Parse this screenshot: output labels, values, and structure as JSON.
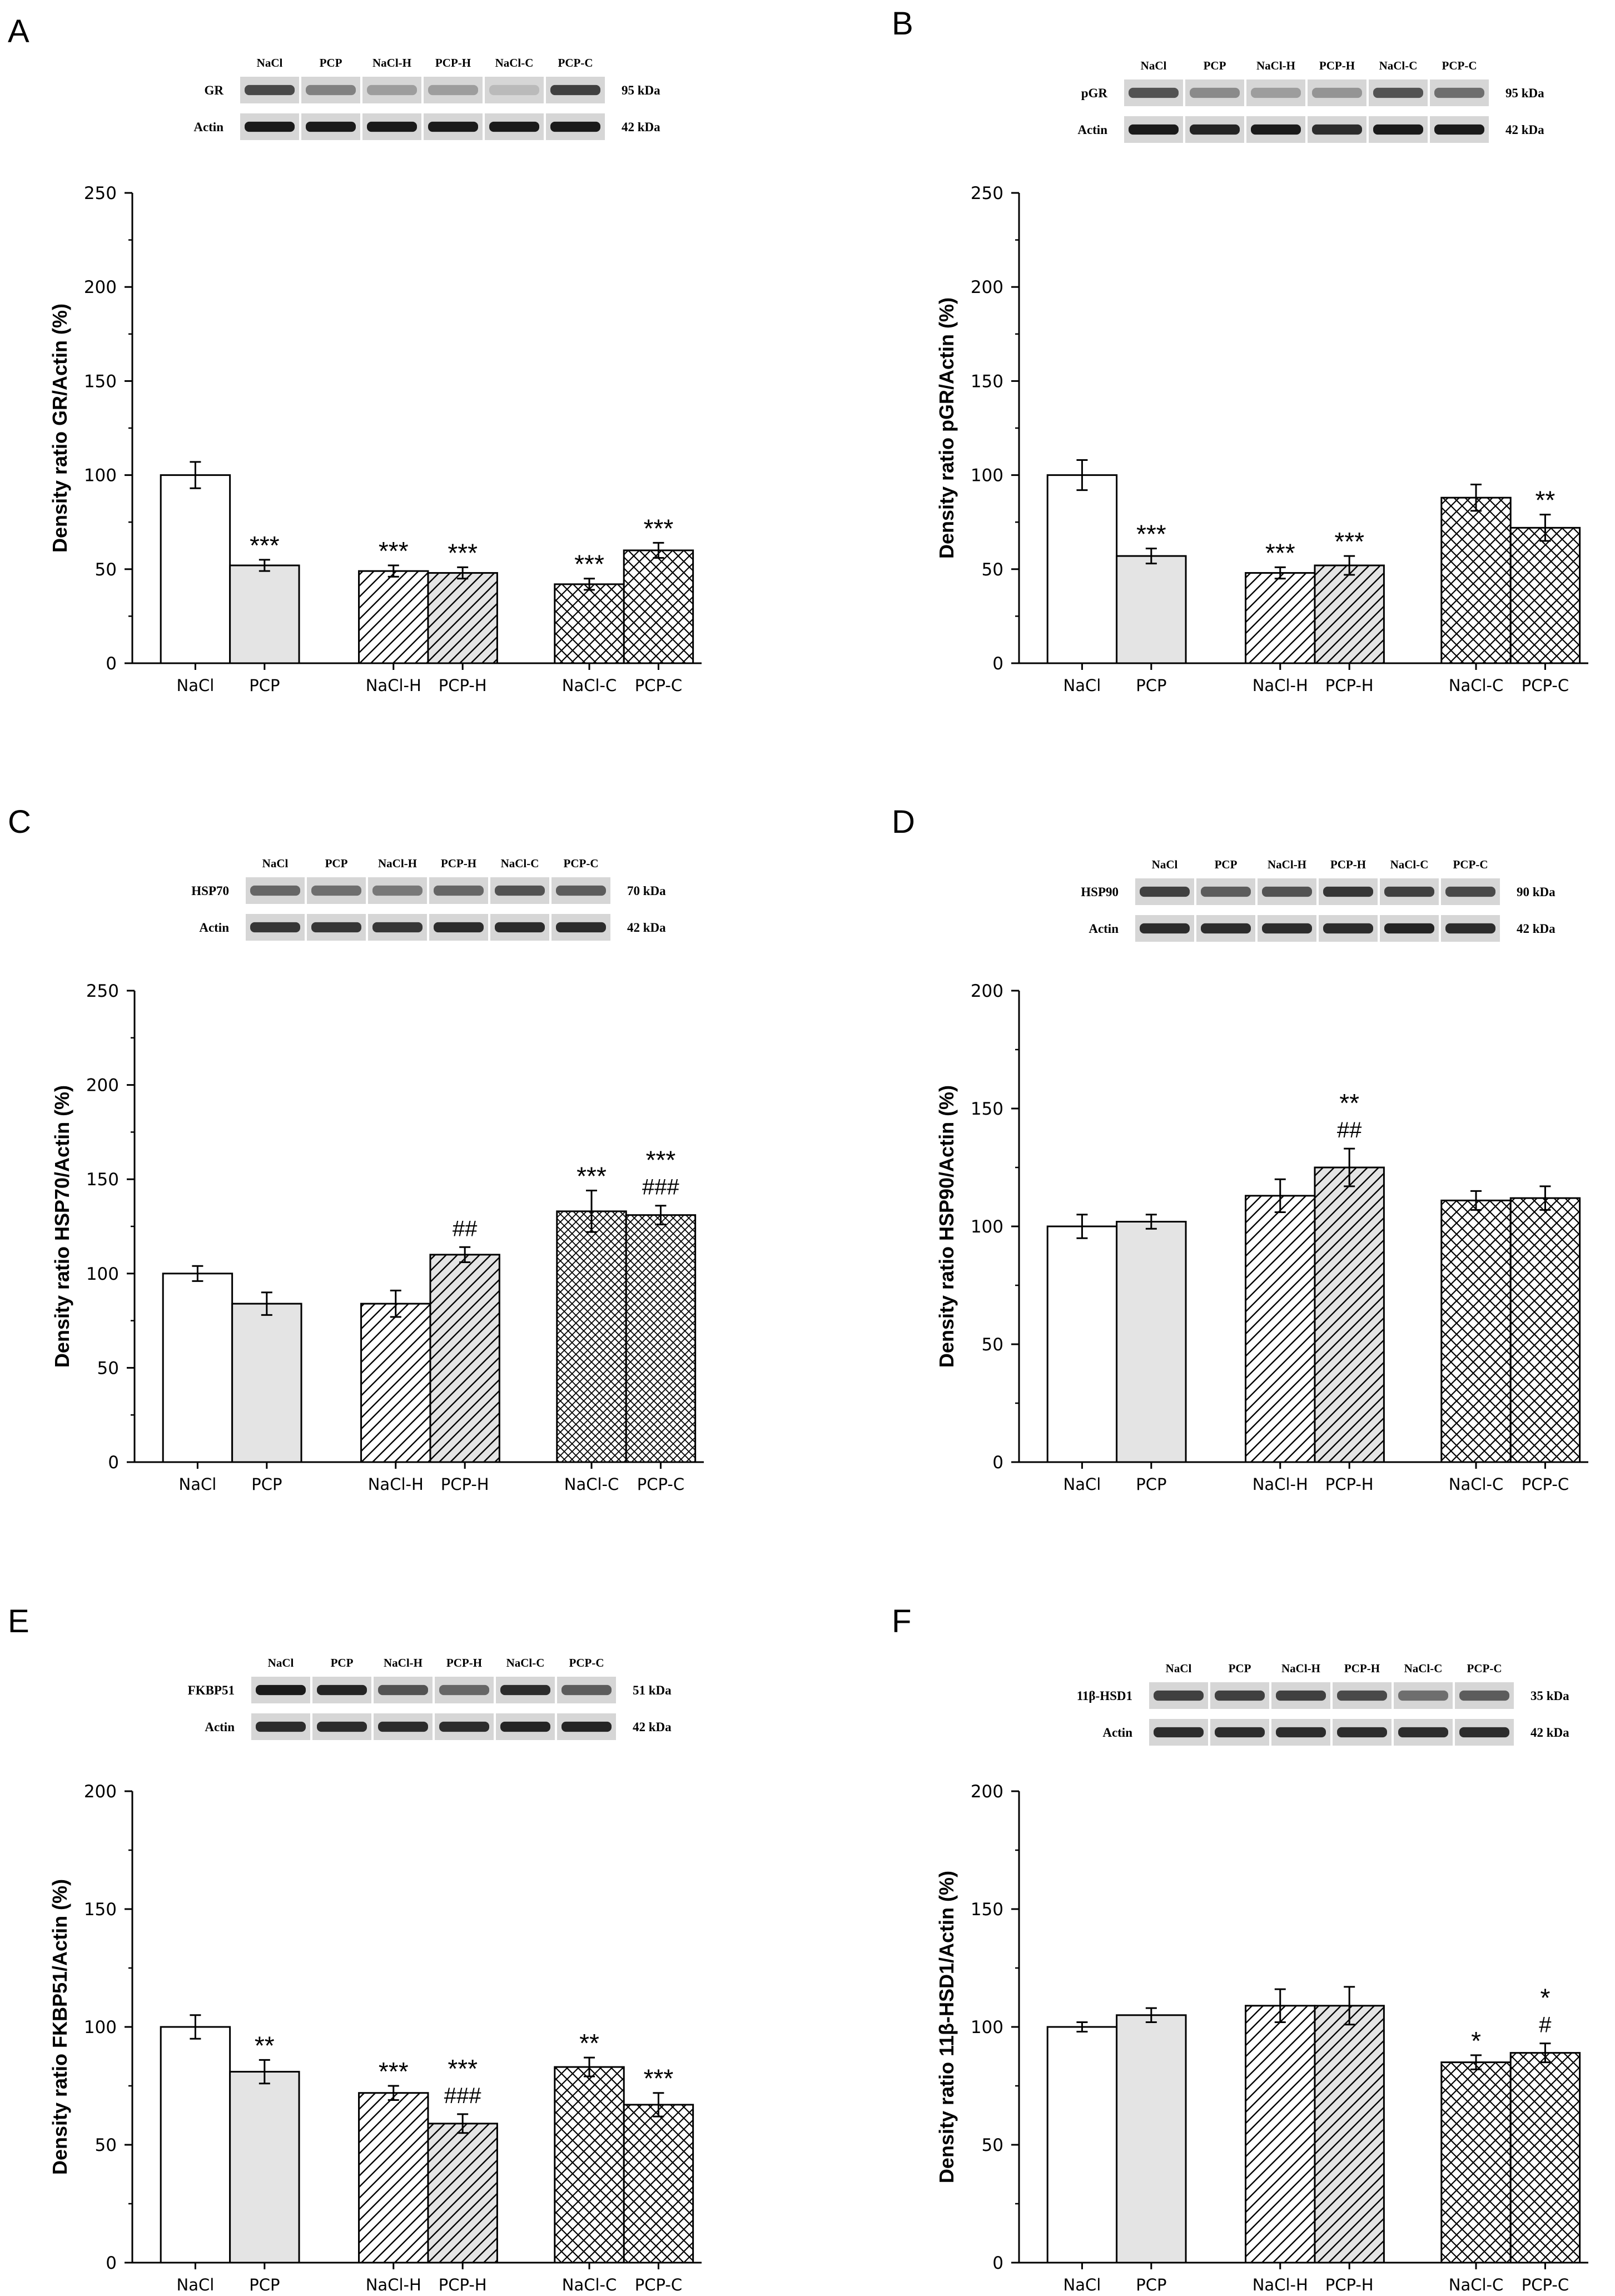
{
  "figure": {
    "colors": {
      "ink": "#000000",
      "pcp_fill": "#e4e4e4",
      "white": "#ffffff",
      "band": "#1a1a1a"
    }
  },
  "chart_data": [
    {
      "label": "A",
      "type": "bar",
      "categories": [
        "NaCl",
        "PCP",
        "NaCl-H",
        "PCP-H",
        "NaCl-C",
        "PCP-C"
      ],
      "values": [
        100,
        52,
        49,
        48,
        42,
        60
      ],
      "errors": [
        7,
        3,
        3,
        3,
        3,
        4
      ],
      "annotations": [
        "",
        "***",
        "***",
        "***",
        "***",
        "***"
      ],
      "annotations2": [
        "",
        "",
        "",
        "",
        "",
        ""
      ],
      "patterns": [
        "white",
        "gray",
        "hatch",
        "hatch-gray",
        "cross",
        "cross"
      ],
      "ylabel": "Density ratio GR/Actin (%)",
      "ylim": [
        0,
        250
      ],
      "yticks": [
        0,
        50,
        100,
        150,
        200,
        250
      ],
      "blot": {
        "lanes": [
          "NaCl",
          "PCP",
          "NaCl-H",
          "PCP-H",
          "NaCl-C",
          "PCP-C"
        ],
        "rows": [
          {
            "name": "GR",
            "kda": "95 kDa",
            "intensity": [
              0.75,
              0.45,
              0.3,
              0.3,
              0.15,
              0.8
            ]
          },
          {
            "name": "Actin",
            "kda": "42 kDa",
            "intensity": [
              1,
              1,
              1,
              1,
              1,
              1
            ]
          }
        ]
      }
    },
    {
      "label": "B",
      "type": "bar",
      "categories": [
        "NaCl",
        "PCP",
        "NaCl-H",
        "PCP-H",
        "NaCl-C",
        "PCP-C"
      ],
      "values": [
        100,
        57,
        48,
        52,
        88,
        72
      ],
      "errors": [
        8,
        4,
        3,
        5,
        7,
        7
      ],
      "annotations": [
        "",
        "***",
        "***",
        "***",
        "",
        "**"
      ],
      "annotations2": [
        "",
        "",
        "",
        "",
        "",
        ""
      ],
      "patterns": [
        "white",
        "gray",
        "hatch",
        "hatch-gray",
        "cross",
        "cross"
      ],
      "ylabel": "Density ratio pGR/Actin (%)",
      "ylim": [
        0,
        250
      ],
      "yticks": [
        0,
        50,
        100,
        150,
        200,
        250
      ],
      "blot": {
        "lanes": [
          "NaCl",
          "PCP",
          "NaCl-H",
          "PCP-H",
          "NaCl-C",
          "PCP-C"
        ],
        "rows": [
          {
            "name": "pGR",
            "kda": "95 kDa",
            "intensity": [
              0.7,
              0.4,
              0.3,
              0.35,
              0.7,
              0.55
            ]
          },
          {
            "name": "Actin",
            "kda": "42 kDa",
            "intensity": [
              1,
              0.95,
              1,
              0.9,
              1,
              1
            ]
          }
        ]
      }
    },
    {
      "label": "C",
      "type": "bar",
      "categories": [
        "NaCl",
        "PCP",
        "NaCl-H",
        "PCP-H",
        "NaCl-C",
        "PCP-C"
      ],
      "values": [
        100,
        84,
        84,
        110,
        133,
        131
      ],
      "errors": [
        4,
        6,
        7,
        4,
        11,
        5
      ],
      "annotations": [
        "",
        "",
        "",
        "",
        "***",
        "***"
      ],
      "annotations2": [
        "",
        "",
        "",
        "##",
        "",
        "###"
      ],
      "patterns": [
        "white",
        "gray",
        "hatch",
        "hatch-gray",
        "cross-dense",
        "cross-dense"
      ],
      "ylabel": "Density ratio HSP70/Actin (%)",
      "ylim": [
        0,
        250
      ],
      "yticks": [
        0,
        50,
        100,
        150,
        200,
        250
      ],
      "blot": {
        "lanes": [
          "NaCl",
          "PCP",
          "NaCl-H",
          "PCP-H",
          "NaCl-C",
          "PCP-C"
        ],
        "rows": [
          {
            "name": "HSP70",
            "kda": "70 kDa",
            "intensity": [
              0.6,
              0.55,
              0.5,
              0.6,
              0.7,
              0.65
            ]
          },
          {
            "name": "Actin",
            "kda": "42 kDa",
            "intensity": [
              0.85,
              0.85,
              0.85,
              0.9,
              0.9,
              0.9
            ]
          }
        ]
      }
    },
    {
      "label": "D",
      "type": "bar",
      "categories": [
        "NaCl",
        "PCP",
        "NaCl-H",
        "PCP-H",
        "NaCl-C",
        "PCP-C"
      ],
      "values": [
        100,
        102,
        113,
        125,
        111,
        112
      ],
      "errors": [
        5,
        3,
        7,
        8,
        4,
        5
      ],
      "annotations": [
        "",
        "",
        "",
        "**",
        "",
        ""
      ],
      "annotations2": [
        "",
        "",
        "",
        "##",
        "",
        ""
      ],
      "patterns": [
        "white",
        "gray",
        "hatch",
        "hatch-gray",
        "cross",
        "cross"
      ],
      "ylabel": "Density ratio HSP90/Actin (%)",
      "ylim": [
        0,
        200
      ],
      "yticks": [
        0,
        50,
        100,
        150,
        200
      ],
      "blot": {
        "lanes": [
          "NaCl",
          "PCP",
          "NaCl-H",
          "PCP-H",
          "NaCl-C",
          "PCP-C"
        ],
        "rows": [
          {
            "name": "HSP90",
            "kda": "90 kDa",
            "intensity": [
              0.8,
              0.65,
              0.7,
              0.85,
              0.8,
              0.75
            ]
          },
          {
            "name": "Actin",
            "kda": "42 kDa",
            "intensity": [
              0.9,
              0.9,
              0.9,
              0.9,
              0.95,
              0.9
            ]
          }
        ]
      }
    },
    {
      "label": "E",
      "type": "bar",
      "categories": [
        "NaCl",
        "PCP",
        "NaCl-H",
        "PCP-H",
        "NaCl-C",
        "PCP-C"
      ],
      "values": [
        100,
        81,
        72,
        59,
        83,
        67
      ],
      "errors": [
        5,
        5,
        3,
        4,
        4,
        5
      ],
      "annotations": [
        "",
        "**",
        "***",
        "***",
        "**",
        "***"
      ],
      "annotations2": [
        "",
        "",
        "",
        "###",
        "",
        ""
      ],
      "patterns": [
        "white",
        "gray",
        "hatch",
        "hatch-gray",
        "cross",
        "cross"
      ],
      "ylabel": "Density ratio FKBP51/Actin (%)",
      "ylim": [
        0,
        200
      ],
      "yticks": [
        0,
        50,
        100,
        150,
        200
      ],
      "blot": {
        "lanes": [
          "NaCl",
          "PCP",
          "NaCl-H",
          "PCP-H",
          "NaCl-C",
          "PCP-C"
        ],
        "rows": [
          {
            "name": "FKBP51",
            "kda": "51 kDa",
            "intensity": [
              1,
              0.95,
              0.7,
              0.6,
              0.9,
              0.65
            ]
          },
          {
            "name": "Actin",
            "kda": "42 kDa",
            "intensity": [
              0.9,
              0.9,
              0.9,
              0.9,
              0.95,
              0.95
            ]
          }
        ]
      }
    },
    {
      "label": "F",
      "type": "bar",
      "categories": [
        "NaCl",
        "PCP",
        "NaCl-H",
        "PCP-H",
        "NaCl-C",
        "PCP-C"
      ],
      "values": [
        100,
        105,
        109,
        109,
        85,
        89
      ],
      "errors": [
        2,
        3,
        7,
        8,
        3,
        4
      ],
      "annotations": [
        "",
        "",
        "",
        "",
        "*",
        "*"
      ],
      "annotations2": [
        "",
        "",
        "",
        "",
        "",
        "#"
      ],
      "patterns": [
        "white",
        "gray",
        "hatch",
        "hatch-gray",
        "cross",
        "cross"
      ],
      "ylabel": "Density ratio 11β-HSD1/Actin (%)",
      "ylim": [
        0,
        200
      ],
      "yticks": [
        0,
        50,
        100,
        150,
        200
      ],
      "blot": {
        "lanes": [
          "NaCl",
          "PCP",
          "NaCl-H",
          "PCP-H",
          "NaCl-C",
          "PCP-C"
        ],
        "rows": [
          {
            "name": "11β-HSD1",
            "kda": "35 kDa",
            "intensity": [
              0.8,
              0.8,
              0.8,
              0.75,
              0.55,
              0.65
            ]
          },
          {
            "name": "Actin",
            "kda": "42 kDa",
            "intensity": [
              0.9,
              0.9,
              0.9,
              0.9,
              0.9,
              0.9
            ]
          }
        ]
      }
    }
  ]
}
